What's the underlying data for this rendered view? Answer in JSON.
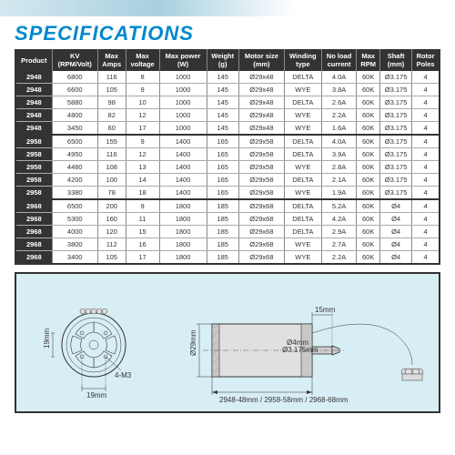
{
  "title": "SPECIFICATIONS",
  "columns": [
    "Product",
    "KV\n(RPM/Volt)",
    "Max\nAmps",
    "Max\nvoltage",
    "Max power\n(W)",
    "Weight\n(g)",
    "Motor size\n(mm)",
    "Winding\ntype",
    "No load\ncurrent",
    "Max\nRPM",
    "Shaft\n(mm)",
    "Rotor\nPoles"
  ],
  "groups": [
    {
      "rows": [
        [
          "2948",
          "6800",
          "116",
          "8",
          "1000",
          "145",
          "Ø29x48",
          "DELTA",
          "4.0A",
          "60K",
          "Ø3.175",
          "4"
        ],
        [
          "2948",
          "6600",
          "105",
          "9",
          "1000",
          "145",
          "Ø29x48",
          "WYE",
          "3.8A",
          "60K",
          "Ø3.175",
          "4"
        ],
        [
          "2948",
          "5880",
          "98",
          "10",
          "1000",
          "145",
          "Ø29x48",
          "DELTA",
          "2.6A",
          "60K",
          "Ø3.175",
          "4"
        ],
        [
          "2948",
          "4800",
          "82",
          "12",
          "1000",
          "145",
          "Ø29x48",
          "WYE",
          "2.2A",
          "60K",
          "Ø3.175",
          "4"
        ],
        [
          "2948",
          "3450",
          "60",
          "17",
          "1000",
          "145",
          "Ø29x48",
          "WYE",
          "1.6A",
          "60K",
          "Ø3.175",
          "4"
        ]
      ]
    },
    {
      "rows": [
        [
          "2958",
          "6500",
          "155",
          "9",
          "1400",
          "165",
          "Ø29x58",
          "DELTA",
          "4.0A",
          "60K",
          "Ø3.175",
          "4"
        ],
        [
          "2958",
          "4950",
          "116",
          "12",
          "1400",
          "165",
          "Ø29x58",
          "DELTA",
          "3.9A",
          "60K",
          "Ø3.175",
          "4"
        ],
        [
          "2958",
          "4480",
          "108",
          "13",
          "1400",
          "165",
          "Ø29x58",
          "WYE",
          "2.8A",
          "60K",
          "Ø3.175",
          "4"
        ],
        [
          "2958",
          "4200",
          "100",
          "14",
          "1400",
          "165",
          "Ø29x58",
          "DELTA",
          "2.1A",
          "60K",
          "Ø3.175",
          "4"
        ],
        [
          "2958",
          "3380",
          "78",
          "18",
          "1400",
          "165",
          "Ø29x58",
          "WYE",
          "1.9A",
          "60K",
          "Ø3.175",
          "4"
        ]
      ]
    },
    {
      "rows": [
        [
          "2968",
          "6500",
          "200",
          "9",
          "1800",
          "185",
          "Ø29x68",
          "DELTA",
          "5.2A",
          "60K",
          "Ø4",
          "4"
        ],
        [
          "2968",
          "5300",
          "160",
          "11",
          "1800",
          "185",
          "Ø29x68",
          "DELTA",
          "4.2A",
          "60K",
          "Ø4",
          "4"
        ],
        [
          "2968",
          "4000",
          "120",
          "15",
          "1800",
          "185",
          "Ø29x68",
          "DELTA",
          "2.9A",
          "60K",
          "Ø4",
          "4"
        ],
        [
          "2968",
          "3800",
          "112",
          "16",
          "1800",
          "185",
          "Ø29x68",
          "WYE",
          "2.7A",
          "60K",
          "Ø4",
          "4"
        ],
        [
          "2968",
          "3400",
          "105",
          "17",
          "1800",
          "185",
          "Ø29x68",
          "WYE",
          "2.2A",
          "60K",
          "Ø4",
          "4"
        ]
      ]
    }
  ],
  "diagram": {
    "front": {
      "outer_diameter_label": "19mm",
      "hole_pattern_label": "4-M3",
      "bottom_dim": "19mm"
    },
    "side": {
      "top_dim": "15mm",
      "shaft_dia_labels": [
        "Ø4mm",
        "Ø3.175mm"
      ],
      "body_dia": "Ø29mm",
      "length_note": "2948-48mm / 2958-58mm / 2968-68mm"
    },
    "colors": {
      "bg": "#d8eef5",
      "body": "#e8e8e8",
      "body_dark": "#bfbfbf",
      "line": "#333333"
    }
  }
}
